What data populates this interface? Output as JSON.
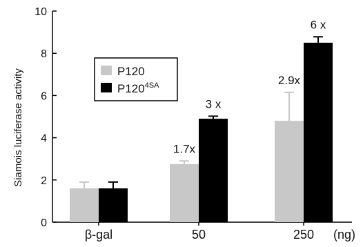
{
  "chart_data": {
    "type": "bar",
    "ylabel": "Siamois luciferase activity",
    "unit_label": "(ng)",
    "ylim": [
      0,
      10
    ],
    "yticks": [
      0,
      2,
      4,
      6,
      8,
      10
    ],
    "categories": [
      "β-gal",
      "50",
      "250"
    ],
    "series": [
      {
        "name": "P120",
        "name_superscript": "",
        "color": "#c8c8c8",
        "values": [
          1.6,
          2.75,
          4.8
        ],
        "errors": [
          0.3,
          0.15,
          1.35
        ],
        "annotations": [
          "",
          "1.7x",
          "2.9x"
        ]
      },
      {
        "name": "P120",
        "name_superscript": "4SA",
        "color": "#000000",
        "values": [
          1.6,
          4.9,
          8.5
        ],
        "errors": [
          0.3,
          0.12,
          0.28
        ],
        "annotations": [
          "",
          "3 x",
          "6 x"
        ]
      }
    ],
    "legend": {
      "position": "upper-left"
    },
    "grid": false
  }
}
